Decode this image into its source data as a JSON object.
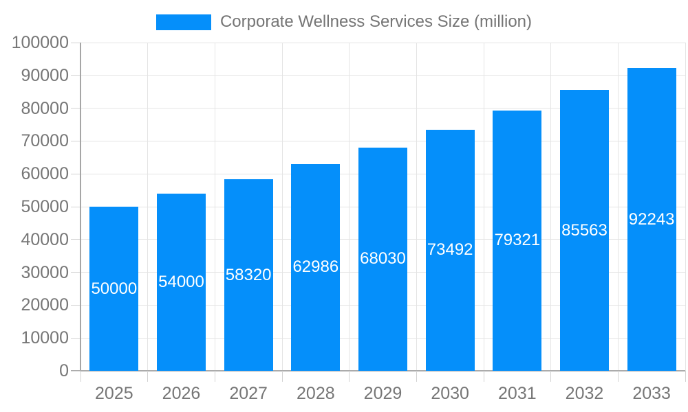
{
  "chart_data": {
    "type": "bar",
    "title": "Corporate Wellness Services Size (million)",
    "categories": [
      "2025",
      "2026",
      "2027",
      "2028",
      "2029",
      "2030",
      "2031",
      "2032",
      "2033"
    ],
    "values": [
      50000,
      54000,
      58320,
      62986,
      68030,
      73492,
      79321,
      85563,
      92243
    ],
    "xlabel": "",
    "ylabel": "",
    "ylim": [
      0,
      100000
    ],
    "ytick_step": 10000,
    "grid": true,
    "legend_position": "top",
    "colors": {
      "bar": "#058FFA",
      "data_label": "#ffffff",
      "axis_label": "#767676",
      "legend_label": "#757575",
      "gridline": "#e4e4e4",
      "x_axis_line": "#ababab",
      "y_axis_line": "#a6a6a6",
      "tick": "#d2d2d2"
    }
  }
}
